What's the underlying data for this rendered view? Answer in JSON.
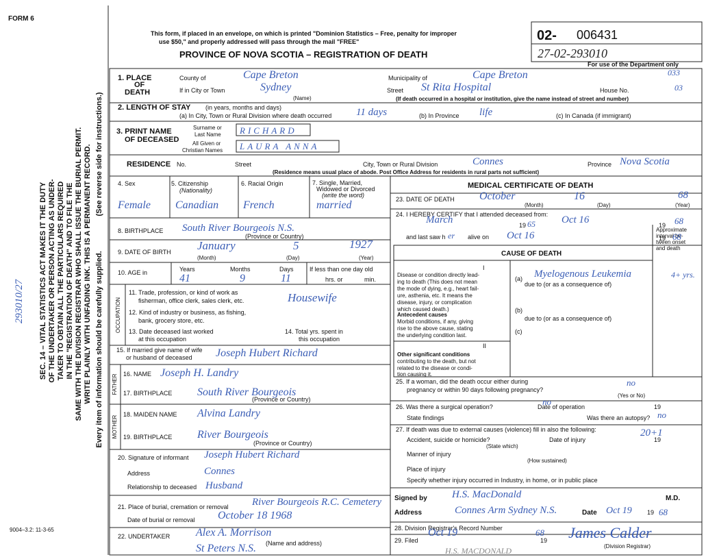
{
  "header": [
    "FORM 6",
    "This form, if placed in an envelope, on which is printed \"Dominion Statistics – Free, penalty for improper",
    "use $50,\" and properly addressed will pass through the mail \"FREE\"",
    "PROVINCE OF NOVA SCOTIA – REGISTRATION OF DEATH",
    "02-",
    "006431",
    "For use of the Department only",
    "9004–3.2: 11-3-65"
  ],
  "margin": [
    "SEC. 14 – VITAL STATISTICS ACT MAKES IT THE DUTY",
    "OF THE UNDERTAKER OR PERSON ACTING AS UNDER-",
    "TAKER TO OBTAIN ALL THE PARTICULARS REQUIRED",
    "IN THE \"REGISTRATION OF DEATH\" AND TO FILE THE",
    "SAME WITH THE DIVISION REGISTRAR WHO SHALL ISSUE THE BURIAL PERMIT.",
    "WRITE PLAINLY WITH UNFADING INK. THIS IS A PERMANENT RECORD.",
    "(See reverse side for instructions.)",
    "Every item of information should be carefully supplied."
  ],
  "form": [
    "1. PLACE",
    "OF",
    "DEATH",
    "County of",
    "Municipality of",
    "If in City or Town",
    "Street",
    "House No.",
    "(Name)",
    "(If death occurred in a hospital or institution, give the name instead of street and number)",
    "2. LENGTH OF STAY",
    "(in years, months and days)",
    "(a) In City, Town or Rural Division where death occurred",
    "(b) In Province",
    "(c) In Canada (if immigrant)",
    "3. PRINT NAME",
    "OF DECEASED",
    "Surname or",
    "Last Name",
    "All Given or",
    "Christian Names",
    "RESIDENCE",
    "No.",
    "Street",
    "City, Town or Rural Division",
    "Province",
    "(Residence means usual place of abode. Post Office Address for residents in rural parts not sufficient)",
    "4. Sex",
    "5. Citizenship",
    "(Nationality)",
    "6. Racial Origin",
    "7. Single, Married,",
    "Widowed or Divorced",
    "(write the word)",
    "8. BIRTHPLACE",
    "(Province or Country)",
    "9. DATE OF BIRTH",
    "(Month)",
    "(Day)",
    "(Year)",
    "10. AGE in",
    "Years",
    "Months",
    "Days",
    "If less than one day old",
    "hrs. or",
    "min.",
    "11. Trade, profession, or kind of work as",
    "fisherman, office clerk, sales clerk, etc.",
    "12. Kind of industry or business, as fishing,",
    "bank, grocery store, etc.",
    "13. Date deceased last worked",
    "at this occupation",
    "14. Total yrs. spent in",
    "this occupation",
    "OCCUPATION",
    "15. If married give name of wife",
    "or husband of deceased",
    "16. NAME",
    "17. BIRTHPLACE",
    "(Province or Country)",
    "FATHER",
    "18. MAIDEN NAME",
    "19. BIRTHPLACE",
    "(Province or Country)",
    "MOTHER",
    "20. Signature of informant",
    "Address",
    "Relationship to deceased",
    "21. Place of burial, cremation or removal",
    "Date of burial or removal",
    "22. UNDERTAKER",
    "(Name and address)"
  ],
  "medical": [
    "MEDICAL CERTIFICATE OF DEATH",
    "23. DATE OF DEATH",
    "(Month)",
    "(Day)",
    "(Year)",
    "24. I HEREBY CERTIFY that I attended deceased from:",
    "19",
    "19",
    "and last saw h",
    "alive on",
    "19",
    "CAUSE OF DEATH",
    "Approximate",
    "interval be-",
    "tween onset",
    "and death",
    "I",
    "Disease or condition directly lead-",
    "ing to death (This does not mean",
    "the mode of dying, e.g., heart fail-",
    "ure, asthenia, etc. It means the",
    "disease, injury, or complication",
    "which caused death.)",
    "(a)",
    "due to (or as a consequence of)",
    "Antecedent causes",
    "Morbid conditions, if any, giving",
    "rise to the above cause, stating",
    "the underlying condition last.",
    "(b)",
    "due to (or as a consequence of)",
    "(c)",
    "II",
    "Other significant conditions",
    "contributing to the death, but not",
    "related to the disease or condi-",
    "tion causing it.",
    "25. If a woman, did the death occur either during",
    "pregnancy or within 90 days following pregnancy?",
    "(Yes or No)",
    "26. Was there a surgical operation?",
    "Date of operation",
    "19",
    "State findings",
    "Was there an autopsy?",
    "27. If death was due to external causes (violence) fill in also the following:",
    "Accident, suicide or homicide?",
    "Date of injury",
    "19",
    "(State which)",
    "Manner of injury",
    "(How sustained)",
    "Place of injury",
    "Specify whether injury occurred in Industry, in home, or in public place",
    "Signed by",
    "M.D.",
    "Address",
    "Date",
    "19",
    "28. Division Registrar's Record Number",
    "29. Filed",
    "19",
    "(Division Registrar)"
  ],
  "entries": [
    "27-02-293010",
    "Cape Breton",
    "Cape Breton",
    "033",
    "03",
    "Sydney",
    "St Rita Hospital",
    "11 days",
    "life",
    "RICHARD",
    "LAURA ANNA",
    "Connes",
    "Nova Scotia",
    "Female",
    "Canadian",
    "French",
    "married",
    "October",
    "16",
    "68",
    "March",
    "65",
    "Oct 16",
    "68",
    "er",
    "Oct 16",
    "68",
    "South River Bourgeois N.S.",
    "January",
    "5",
    "1927",
    "41",
    "9",
    "11",
    "Housewife",
    "Joseph Hubert Richard",
    "Joseph H. Landry",
    "South River Bourgeois",
    "Alvina Landry",
    "River Bourgeois",
    "Joseph Hubert Richard",
    "Connes",
    "Husband",
    "River Bourgeois R.C. Cemetery",
    "October 18 1968",
    "Alex A. Morrison",
    "St Peters N.S.",
    "Myelogenous Leukemia",
    "4+ yrs.",
    "no",
    "no",
    "no",
    "20+1",
    "H.S. MacDonald",
    "Connes Arm Sydney N.S.",
    "Oct 19",
    "68",
    "Oct 19",
    "68",
    "James Calder",
    "H.S. MACDONALD",
    "293010/27"
  ]
}
